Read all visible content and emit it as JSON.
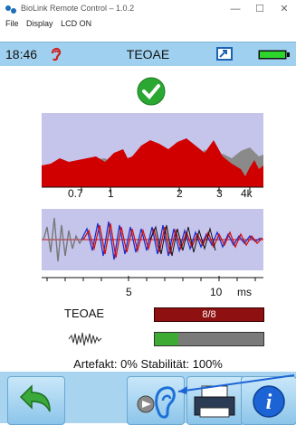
{
  "window": {
    "title": "BioLink Remote Control  –  1.0.2",
    "minimize": "—",
    "maximize": "☐",
    "close": "✕"
  },
  "menu": [
    "File",
    "Display",
    "LCD ON"
  ],
  "header": {
    "time": "18:46",
    "title": "TEOAE"
  },
  "spectrum": {
    "freq_ticks": [
      "0.7",
      "1",
      "2",
      "3",
      "4k"
    ]
  },
  "waveform": {
    "time_ticks": [
      "5",
      "10",
      "ms"
    ]
  },
  "measurement": {
    "teoae_label": "TEOAE",
    "teoae_value": "8/8",
    "noise_level": 0.22,
    "stats": "Artefakt: 0%  Stabilität: 100%"
  },
  "colors": {
    "header_bg": "#9fd0ef",
    "ok_green": "#2aa832",
    "bar_red": "#8e1010",
    "spectrum_red": "#d00000",
    "spectrum_gray": "#8a8a8a",
    "wave_blue": "#1a2fd0",
    "wave_red": "#d01010"
  },
  "icons": [
    "biolink-logo-icon",
    "ear-icon",
    "window-icon",
    "battery-icon",
    "checkmark-icon",
    "noise-icon",
    "back-arrow-icon",
    "ear-sound-icon",
    "printer-icon",
    "info-icon"
  ]
}
